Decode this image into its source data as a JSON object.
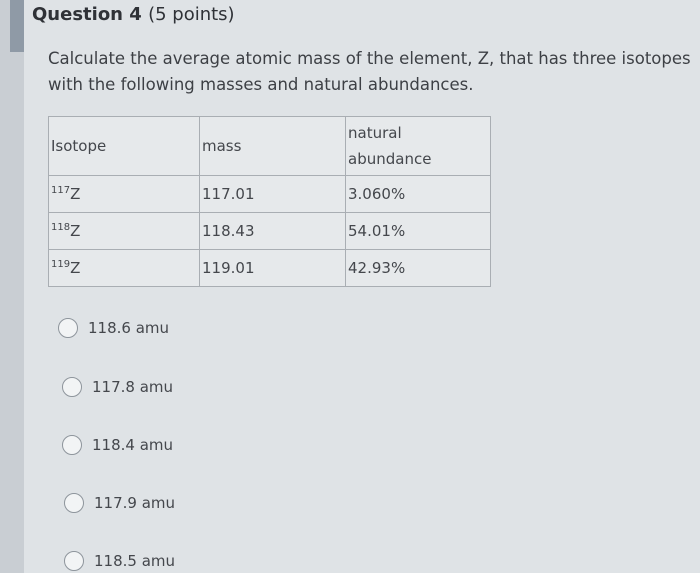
{
  "question": {
    "title": "Question 4",
    "points": "(5 points)",
    "prompt": "Calculate the average atomic mass of the element, Z, that has three isotopes with the following masses and natural abundances."
  },
  "table": {
    "headers": [
      "Isotope",
      "mass",
      "natural abundance"
    ],
    "rows": [
      {
        "mass_number": "117",
        "symbol": "Z",
        "mass": "117.01",
        "abundance": "3.060%"
      },
      {
        "mass_number": "118",
        "symbol": "Z",
        "mass": "118.43",
        "abundance": "54.01%"
      },
      {
        "mass_number": "119",
        "symbol": "Z",
        "mass": "119.01",
        "abundance": "42.93%"
      }
    ]
  },
  "options": [
    "118.6 amu",
    "117.8 amu",
    "118.4 amu",
    "117.9 amu",
    "118.5 amu"
  ]
}
